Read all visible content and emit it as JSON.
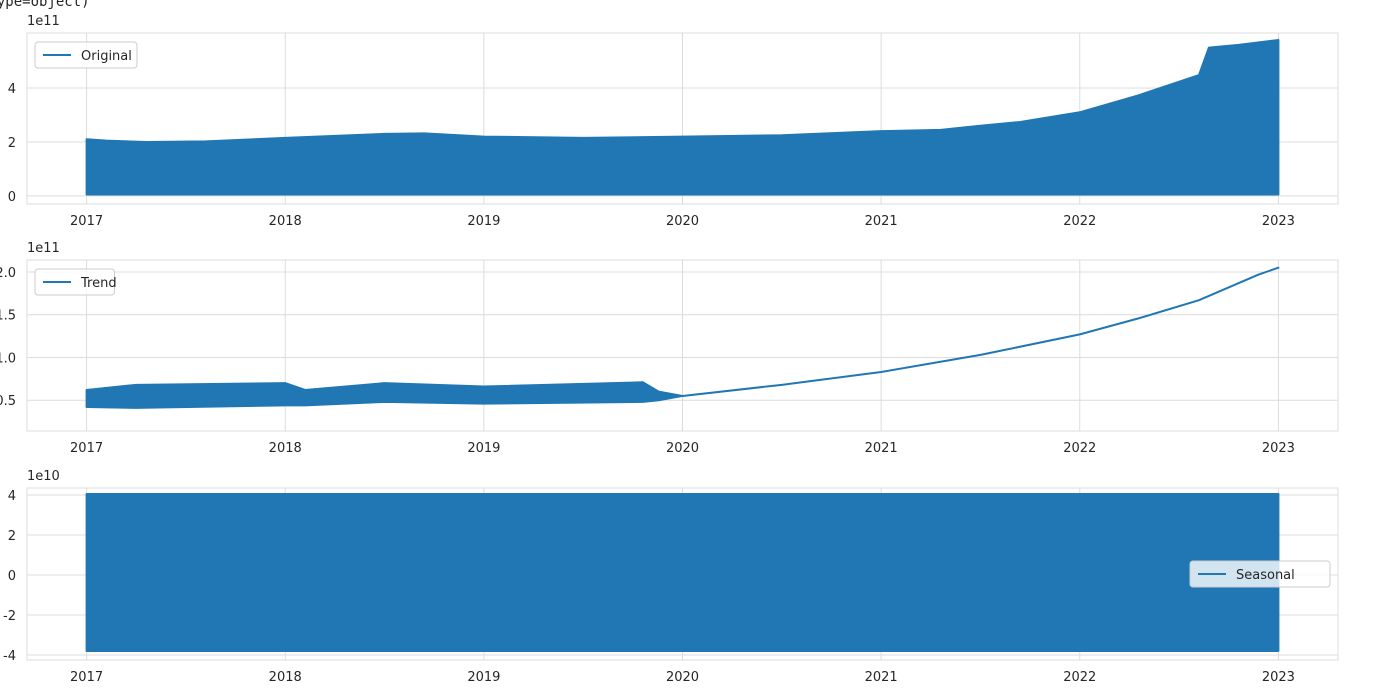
{
  "header_text": "dtype=object)",
  "chart_data": [
    {
      "type": "band",
      "offset_label": "1e11",
      "legend": "upper left",
      "grid": true,
      "xlim": [
        2016.7,
        2023.3
      ],
      "xticks": [
        2017,
        2018,
        2019,
        2020,
        2021,
        2022,
        2023
      ],
      "ylim": [
        -0.3,
        6.04
      ],
      "yticks": [
        0,
        2,
        4
      ],
      "x": [
        2017,
        2017.1,
        2017.3,
        2017.6,
        2018,
        2018.5,
        2018.7,
        2019,
        2019.5,
        2020,
        2020.5,
        2021,
        2021.3,
        2021.5,
        2021.7,
        2022,
        2022.3,
        2022.6,
        2022.65,
        2022.8,
        2023
      ],
      "series": [
        {
          "name": "Original",
          "color": "#2077b4",
          "high": [
            2.1,
            2.05,
            2.0,
            2.02,
            2.15,
            2.3,
            2.32,
            2.2,
            2.15,
            2.2,
            2.25,
            2.4,
            2.45,
            2.6,
            2.74,
            3.1,
            3.74,
            4.48,
            5.5,
            5.6,
            5.78
          ],
          "low": [
            0.05,
            0.05,
            0.05,
            0.05,
            0.05,
            0.05,
            0.05,
            0.05,
            0.05,
            0.05,
            0.05,
            0.05,
            0.05,
            0.05,
            0.05,
            0.05,
            0.05,
            0.05,
            0.05,
            0.05,
            0.05
          ]
        }
      ]
    },
    {
      "type": "band",
      "offset_label": "1e11",
      "legend": "upper left",
      "grid": true,
      "xlim": [
        2016.7,
        2023.3
      ],
      "xticks": [
        2017,
        2018,
        2019,
        2020,
        2021,
        2022,
        2023
      ],
      "ylim": [
        0.14,
        2.14
      ],
      "yticks": [
        {
          "value": 0.5,
          "label": "0.5"
        },
        {
          "value": 1,
          "label": "1.0"
        },
        {
          "value": 1.5,
          "label": "1.5"
        },
        {
          "value": 2,
          "label": "2.0"
        }
      ],
      "x": [
        2017,
        2017.25,
        2018,
        2018.1,
        2018.5,
        2019,
        2019.8,
        2019.88,
        2020,
        2020.5,
        2021,
        2021.5,
        2022,
        2022.3,
        2022.6,
        2022.9,
        2023
      ],
      "series": [
        {
          "name": "Trend",
          "color": "#2077b4",
          "high": [
            0.62,
            0.68,
            0.7,
            0.62,
            0.7,
            0.66,
            0.71,
            0.6,
            0.55,
            0.68,
            0.83,
            1.03,
            1.27,
            1.46,
            1.67,
            1.97,
            2.05
          ],
          "low": [
            0.42,
            0.41,
            0.44,
            0.44,
            0.48,
            0.46,
            0.48,
            0.5,
            0.55,
            0.68,
            0.83,
            1.03,
            1.27,
            1.46,
            1.67,
            1.97,
            2.05
          ]
        }
      ]
    },
    {
      "type": "band",
      "offset_label": "1e10",
      "legend": "center right",
      "grid": true,
      "xlim": [
        2016.7,
        2023.3
      ],
      "xticks": [
        2017,
        2018,
        2019,
        2020,
        2021,
        2022,
        2023
      ],
      "ylim": [
        -4.25,
        4.35
      ],
      "yticks": [
        -4,
        -2,
        0,
        2,
        4
      ],
      "x": [
        2017,
        2023
      ],
      "series": [
        {
          "name": "Seasonal",
          "color": "#2077b4",
          "high": [
            4.05,
            4.05
          ],
          "low": [
            -3.8,
            -3.8
          ]
        }
      ]
    }
  ]
}
